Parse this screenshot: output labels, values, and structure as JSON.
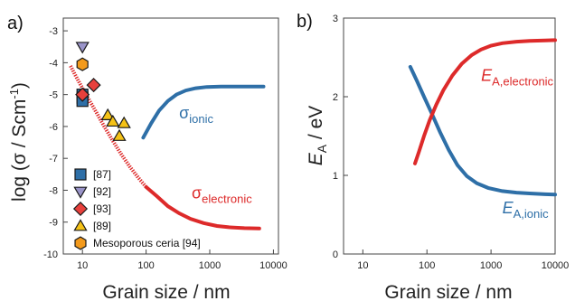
{
  "chart_data": [
    {
      "panel": "a)",
      "type": "scatter",
      "xlabel": "Grain size / nm",
      "ylabel": {
        "base": "log (σ / Scm",
        "sup": "-1",
        "end": ")"
      },
      "x_scale": "log",
      "xlim": [
        5,
        12000
      ],
      "ylim": [
        -10,
        -2.6
      ],
      "x_ticks": [
        10,
        100,
        1000,
        10000
      ],
      "y_ticks": [
        -10,
        -9,
        -8,
        -7,
        -6,
        -5,
        -4,
        -3
      ],
      "colors": {
        "ionic": "#2e6fa7",
        "electronic": "#dd2a2a",
        "frame": "#444444"
      },
      "lines": [
        {
          "id": "sigma-ionic",
          "color": "#2e6fa7",
          "x": [
            90,
            120,
            160,
            220,
            300,
            420,
            600,
            900,
            1500,
            2500,
            4000,
            7000
          ],
          "y": [
            -6.35,
            -5.9,
            -5.5,
            -5.2,
            -5.0,
            -4.87,
            -4.8,
            -4.76,
            -4.75,
            -4.75,
            -4.75,
            -4.75
          ]
        },
        {
          "id": "sigma-electronic-fit",
          "color": "#dd2a2a",
          "dashed": true,
          "x": [
            6.5,
            8,
            10,
            13,
            17,
            22,
            30,
            40,
            55,
            75,
            100
          ],
          "y": [
            -4.1,
            -4.45,
            -4.8,
            -5.2,
            -5.6,
            -6.0,
            -6.45,
            -6.85,
            -7.25,
            -7.6,
            -7.9
          ]
        },
        {
          "id": "sigma-electronic",
          "color": "#dd2a2a",
          "x": [
            100,
            150,
            220,
            330,
            500,
            800,
            1300,
            2000,
            3500,
            6000
          ],
          "y": [
            -7.9,
            -8.2,
            -8.5,
            -8.72,
            -8.9,
            -9.03,
            -9.12,
            -9.16,
            -9.19,
            -9.2
          ]
        }
      ],
      "annotations": [
        {
          "id": "sigma-ionic-label",
          "text": "σ",
          "sub": "ionic",
          "color": "#2e6fa7",
          "x": 330,
          "y": -5.75
        },
        {
          "id": "sigma-electronic-label",
          "text": "σ",
          "sub": "electronic",
          "color": "#dd2a2a",
          "x": 520,
          "y": -8.25
        }
      ],
      "series": [
        {
          "name": "[87]",
          "marker": "square",
          "color": "#2e6fa7",
          "points": [
            [
              10,
              -5.0
            ],
            [
              10,
              -5.1
            ],
            [
              10,
              -5.2
            ]
          ]
        },
        {
          "name": "[92]",
          "marker": "triangle-down",
          "color": "#9a94c9",
          "points": [
            [
              10,
              -3.5
            ]
          ]
        },
        {
          "name": "[93]",
          "marker": "diamond",
          "color": "#e8403c",
          "points": [
            [
              10,
              -5.0
            ],
            [
              15,
              -4.7
            ]
          ]
        },
        {
          "name": "[89]",
          "marker": "triangle-up",
          "color": "#f5c216",
          "points": [
            [
              25,
              -5.65
            ],
            [
              30,
              -5.85
            ],
            [
              38,
              -6.3
            ],
            [
              45,
              -5.9
            ]
          ]
        },
        {
          "name": "Mesoporous ceria [94]",
          "marker": "hexagon",
          "color": "#f39a1c",
          "points": [
            [
              10,
              -4.05
            ]
          ]
        }
      ]
    },
    {
      "panel": "b)",
      "type": "line",
      "xlabel": "Grain size / nm",
      "ylabel": {
        "base": "E",
        "sub": "A",
        "end": " / eV"
      },
      "x_scale": "log",
      "xlim": [
        5,
        10000
      ],
      "ylim": [
        0,
        3
      ],
      "x_ticks": [
        10,
        100,
        1000,
        10000
      ],
      "y_ticks": [
        0,
        1,
        2,
        3
      ],
      "lines": [
        {
          "id": "ea-ionic",
          "color": "#2e6fa7",
          "x": [
            55,
            70,
            90,
            120,
            160,
            220,
            300,
            420,
            600,
            900,
            1500,
            2500,
            4000,
            7000,
            10000
          ],
          "y": [
            2.38,
            2.2,
            2.0,
            1.78,
            1.55,
            1.32,
            1.13,
            0.99,
            0.9,
            0.84,
            0.8,
            0.78,
            0.77,
            0.76,
            0.755
          ]
        },
        {
          "id": "ea-electronic",
          "color": "#dd2a2a",
          "x": [
            65,
            75,
            90,
            110,
            140,
            180,
            250,
            350,
            500,
            700,
            1000,
            1500,
            2500,
            4000,
            7000,
            10000
          ],
          "y": [
            1.15,
            1.3,
            1.5,
            1.7,
            1.9,
            2.08,
            2.27,
            2.42,
            2.53,
            2.6,
            2.65,
            2.68,
            2.7,
            2.71,
            2.715,
            2.72
          ]
        }
      ],
      "annotations": [
        {
          "id": "ea-electronic-label",
          "text": "E",
          "sub": "A,electronic",
          "color": "#dd2a2a",
          "x": 700,
          "y": 2.2
        },
        {
          "id": "ea-ionic-label",
          "text": "E",
          "sub": "A,ionic",
          "color": "#2e6fa7",
          "x": 1500,
          "y": 0.52
        }
      ]
    }
  ]
}
